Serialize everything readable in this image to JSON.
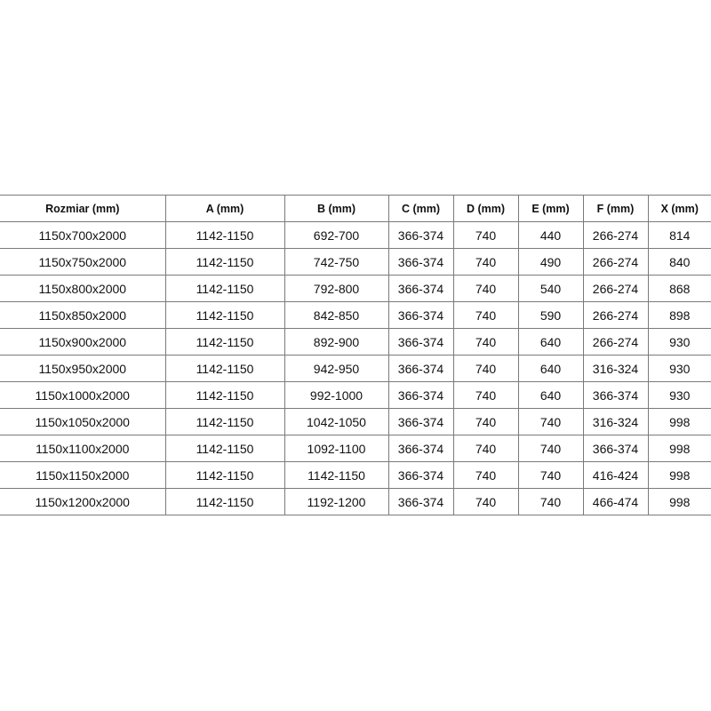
{
  "table": {
    "headers": [
      "Rozmiar (mm)",
      "A (mm)",
      "B (mm)",
      "C (mm)",
      "D (mm)",
      "E (mm)",
      "F (mm)",
      "X (mm)"
    ],
    "rows": [
      [
        "1150x700x2000",
        "1142-1150",
        "692-700",
        "366-374",
        "740",
        "440",
        "266-274",
        "814"
      ],
      [
        "1150x750x2000",
        "1142-1150",
        "742-750",
        "366-374",
        "740",
        "490",
        "266-274",
        "840"
      ],
      [
        "1150x800x2000",
        "1142-1150",
        "792-800",
        "366-374",
        "740",
        "540",
        "266-274",
        "868"
      ],
      [
        "1150x850x2000",
        "1142-1150",
        "842-850",
        "366-374",
        "740",
        "590",
        "266-274",
        "898"
      ],
      [
        "1150x900x2000",
        "1142-1150",
        "892-900",
        "366-374",
        "740",
        "640",
        "266-274",
        "930"
      ],
      [
        "1150x950x2000",
        "1142-1150",
        "942-950",
        "366-374",
        "740",
        "640",
        "316-324",
        "930"
      ],
      [
        "1150x1000x2000",
        "1142-1150",
        "992-1000",
        "366-374",
        "740",
        "640",
        "366-374",
        "930"
      ],
      [
        "1150x1050x2000",
        "1142-1150",
        "1042-1050",
        "366-374",
        "740",
        "740",
        "316-324",
        "998"
      ],
      [
        "1150x1100x2000",
        "1142-1150",
        "1092-1100",
        "366-374",
        "740",
        "740",
        "366-374",
        "998"
      ],
      [
        "1150x1150x2000",
        "1142-1150",
        "1142-1150",
        "366-374",
        "740",
        "740",
        "416-424",
        "998"
      ],
      [
        "1150x1200x2000",
        "1142-1150",
        "1192-1200",
        "366-374",
        "740",
        "740",
        "466-474",
        "998"
      ]
    ]
  }
}
